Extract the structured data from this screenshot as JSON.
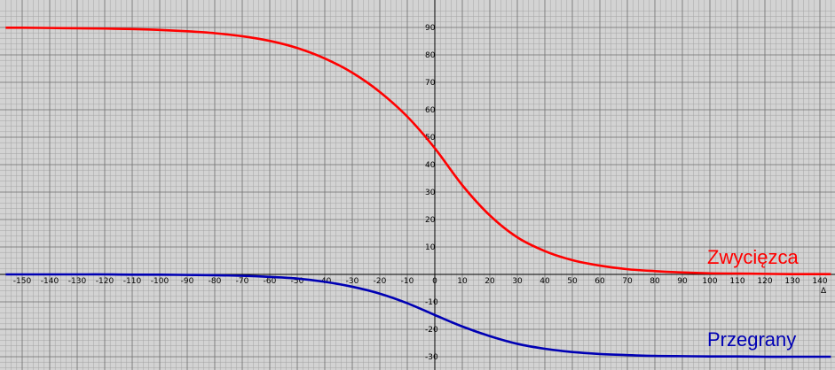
{
  "chart_data": {
    "type": "line",
    "title": "",
    "xlabel": "Δ",
    "ylabel": "",
    "xlim": [
      -156,
      144
    ],
    "ylim": [
      -34,
      97
    ],
    "grid": true,
    "x_ticks": [
      -150,
      -140,
      -130,
      -120,
      -110,
      -100,
      -90,
      -80,
      -70,
      -60,
      -50,
      -40,
      -30,
      -20,
      -10,
      0,
      10,
      20,
      30,
      40,
      50,
      60,
      70,
      80,
      90,
      100,
      110,
      120,
      130,
      140
    ],
    "y_ticks": [
      -30,
      -20,
      -10,
      10,
      20,
      30,
      40,
      50,
      60,
      70,
      80,
      90
    ],
    "series": [
      {
        "name": "Zwycięzca",
        "color": "#ff0000",
        "x": [
          -156,
          -150,
          -140,
          -130,
          -120,
          -110,
          -100,
          -90,
          -80,
          -70,
          -60,
          -50,
          -40,
          -30,
          -20,
          -10,
          0,
          10,
          20,
          30,
          40,
          50,
          60,
          70,
          80,
          90,
          100,
          110,
          120,
          130,
          140,
          144
        ],
        "y": [
          89.9,
          89.9,
          89.8,
          89.7,
          89.6,
          89.4,
          89.1,
          88.6,
          87.9,
          86.8,
          85.1,
          82.5,
          78.7,
          73.5,
          66.5,
          57.5,
          46.0,
          32.5,
          21.5,
          13.5,
          8.5,
          5.2,
          3.2,
          1.9,
          1.2,
          0.7,
          0.4,
          0.3,
          0.2,
          0.1,
          0.1,
          0.1
        ]
      },
      {
        "name": "Przegrany",
        "color": "#0000b4",
        "x": [
          -156,
          -150,
          -140,
          -130,
          -120,
          -110,
          -100,
          -90,
          -80,
          -70,
          -60,
          -50,
          -40,
          -30,
          -20,
          -10,
          0,
          10,
          20,
          30,
          40,
          50,
          60,
          70,
          80,
          90,
          100,
          110,
          120,
          130,
          140,
          144
        ],
        "y": [
          0,
          0,
          0,
          0,
          0,
          -0.1,
          -0.1,
          -0.2,
          -0.3,
          -0.5,
          -0.9,
          -1.5,
          -2.7,
          -4.5,
          -7.0,
          -10.5,
          -14.8,
          -19.0,
          -22.5,
          -25.3,
          -27.1,
          -28.3,
          -29.0,
          -29.4,
          -29.7,
          -29.8,
          -29.9,
          -29.9,
          -30.0,
          -30.0,
          -30.0,
          -30.0
        ]
      }
    ]
  }
}
